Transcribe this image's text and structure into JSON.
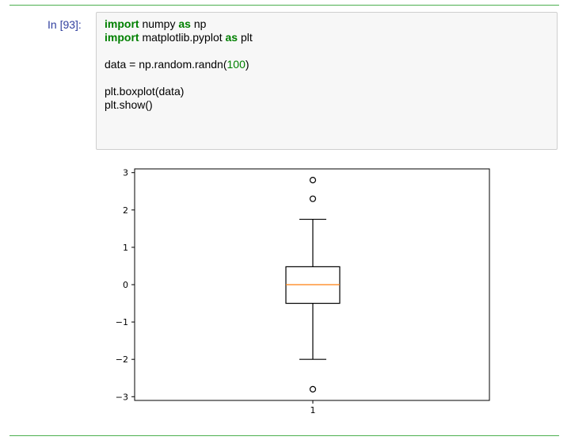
{
  "cell": {
    "prompt": "In [93]:",
    "code_lines": [
      {
        "kind": "import",
        "kw1": "import",
        "mod": " numpy ",
        "kw2": "as",
        "alias": " np"
      },
      {
        "kind": "import",
        "kw1": "import",
        "mod": " matplotlib.pyplot ",
        "kw2": "as",
        "alias": " plt"
      },
      {
        "kind": "blank"
      },
      {
        "kind": "assign",
        "pre": "data = np.random.randn(",
        "num": "100",
        "post": ")"
      },
      {
        "kind": "blank"
      },
      {
        "kind": "plain",
        "text": "plt.boxplot(data)"
      },
      {
        "kind": "plain",
        "text": "plt.show()"
      }
    ]
  },
  "chart_data": {
    "type": "boxplot",
    "categories": [
      "1"
    ],
    "x_tick_labels": [
      "1"
    ],
    "y_tick_labels": [
      "3",
      "2",
      "1",
      "0",
      "−1",
      "−2",
      "−3"
    ],
    "y_ticks": [
      3,
      2,
      1,
      0,
      -1,
      -2,
      -3
    ],
    "ylim": [
      -3.1,
      3.1
    ],
    "box": {
      "median": 0.0,
      "q1": -0.5,
      "q3": 0.48,
      "whisker_low": -2.0,
      "whisker_high": 1.75,
      "fliers": [
        2.8,
        2.3,
        -2.8
      ]
    },
    "colors": {
      "median": "#ff7f0e",
      "box": "#000000"
    },
    "grid": false,
    "title": "",
    "xlabel": "",
    "ylabel": ""
  }
}
